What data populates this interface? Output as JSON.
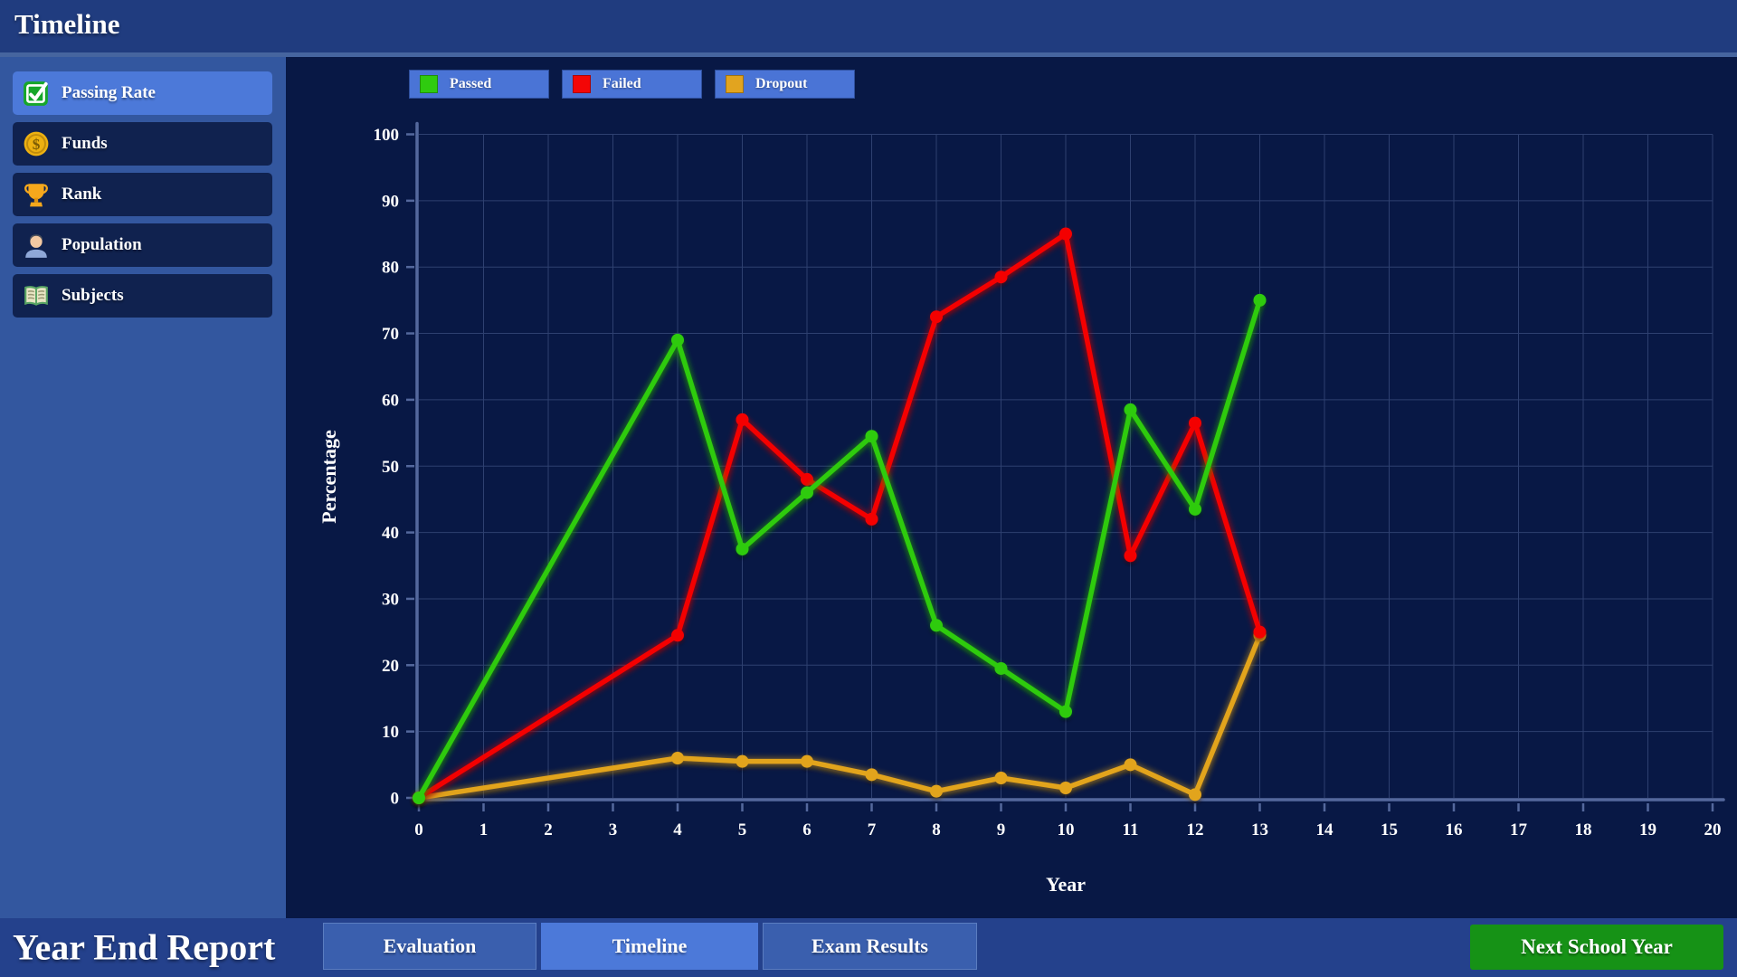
{
  "header": {
    "title": "Timeline"
  },
  "sidebar": {
    "items": [
      {
        "id": "passing-rate",
        "label": "Passing Rate",
        "icon": "check",
        "selected": true
      },
      {
        "id": "funds",
        "label": "Funds",
        "icon": "coin",
        "selected": false
      },
      {
        "id": "rank",
        "label": "Rank",
        "icon": "trophy",
        "selected": false
      },
      {
        "id": "population",
        "label": "Population",
        "icon": "person",
        "selected": false
      },
      {
        "id": "subjects",
        "label": "Subjects",
        "icon": "book",
        "selected": false
      }
    ]
  },
  "chart_data": {
    "type": "line",
    "title": "",
    "xlabel": "Year",
    "ylabel": "Percentage",
    "xlim": [
      0,
      20
    ],
    "ylim": [
      0,
      100
    ],
    "x_tick_step": 1,
    "y_tick_step": 10,
    "grid": true,
    "legend_position": "top-left",
    "x": [
      0,
      4,
      5,
      6,
      7,
      8,
      9,
      10,
      11,
      12,
      13
    ],
    "series": [
      {
        "name": "Passed",
        "color": "#2fcb0f",
        "values": [
          0,
          69,
          37.5,
          46,
          54.5,
          26,
          19.5,
          13,
          58.5,
          43.5,
          75
        ]
      },
      {
        "name": "Failed",
        "color": "#f40606",
        "values": [
          0,
          24.5,
          57,
          48,
          42,
          72.5,
          78.5,
          85,
          36.5,
          56.5,
          25
        ]
      },
      {
        "name": "Dropout",
        "color": "#e2a41f",
        "values": [
          0,
          6,
          5.5,
          5.5,
          3.5,
          1,
          3,
          1.5,
          5,
          0.5,
          24.5
        ]
      }
    ]
  },
  "footer": {
    "title": "Year End Report",
    "tabs": [
      {
        "label": "Evaluation",
        "active": false
      },
      {
        "label": "Timeline",
        "active": true
      },
      {
        "label": "Exam Results",
        "active": false
      }
    ],
    "next_button_label": "Next School Year"
  },
  "colors": {
    "header_blue": "#203c7f",
    "sidebar_blue": "#33579f",
    "panel_navy": "#081845",
    "accent_blue": "#4c79d9",
    "legend_chip_blue": "#4a74d6",
    "footer_blue": "#24418c",
    "button_green": "#169216",
    "passed_green": "#2fcb0f",
    "failed_red": "#f40606",
    "dropout_gold": "#e2a41f"
  }
}
